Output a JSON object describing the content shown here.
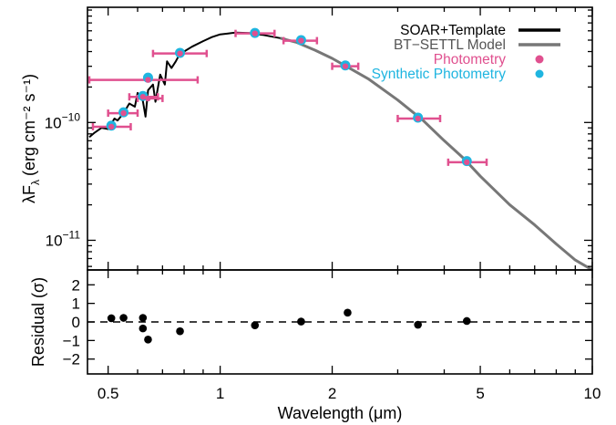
{
  "chart_data": [
    {
      "type": "line",
      "panel": "sed",
      "xscale": "log",
      "yscale": "log",
      "xlim": [
        0.44,
        10
      ],
      "ylim": [
        5.6e-12,
        9.5e-10
      ],
      "ylabel_main": "λF",
      "ylabel_sub": "λ",
      "ylabel_units": "(erg cm⁻² s⁻¹)",
      "y_ticks": [
        {
          "value": 1e-10,
          "base": "10",
          "exp": "−10"
        },
        {
          "value": 1e-11,
          "base": "10",
          "exp": "−11"
        }
      ],
      "legend": {
        "placement": "top-right",
        "entries": [
          {
            "label": "SOAR+Template",
            "color": "#000000",
            "marker": "line"
          },
          {
            "label": "BT−SETTL Model",
            "color": "#777777",
            "marker": "line"
          },
          {
            "label": "Photometry",
            "color": "#e0508f",
            "marker": "dot"
          },
          {
            "label": "Synthetic Photometry",
            "color": "#1fb5e0",
            "marker": "dot"
          }
        ]
      },
      "series": [
        {
          "name": "SOAR+Template",
          "color": "#000000",
          "x": [
            0.445,
            0.46,
            0.48,
            0.5,
            0.52,
            0.53,
            0.55,
            0.57,
            0.59,
            0.6,
            0.62,
            0.63,
            0.64,
            0.66,
            0.67,
            0.69,
            0.71,
            0.72,
            0.74,
            0.76,
            0.78,
            0.8,
            0.84,
            0.9,
            0.95,
            1.0,
            1.05,
            1.1,
            1.2,
            1.3,
            1.4,
            1.45,
            1.5
          ],
          "y": [
            7.5e-11,
            8.2e-11,
            9e-11,
            8.8e-11,
            1.08e-10,
            1.04e-10,
            1.2e-10,
            1.45e-10,
            1.36e-10,
            1.78e-10,
            1.52e-10,
            1.12e-10,
            1.88e-10,
            2.1e-10,
            1.5e-10,
            2.55e-10,
            2.1e-10,
            3.3e-10,
            2.9e-10,
            3.3e-10,
            3.85e-10,
            4e-10,
            4.4e-10,
            4.9e-10,
            5.3e-10,
            5.6e-10,
            5.7e-10,
            5.8e-10,
            5.75e-10,
            5.55e-10,
            5.3e-10,
            5.2e-10,
            5.1e-10
          ]
        },
        {
          "name": "BT−SETTL Model",
          "color": "#777777",
          "x": [
            1.45,
            1.6,
            1.8,
            2.0,
            2.2,
            2.5,
            3.0,
            3.5,
            4.0,
            4.5,
            5.0,
            6.0,
            7.0,
            8.0,
            9.0,
            10.0
          ],
          "y": [
            5.2e-10,
            4.8e-10,
            4.1e-10,
            3.5e-10,
            2.95e-10,
            2.35e-10,
            1.55e-10,
            1.05e-10,
            7e-11,
            5e-11,
            3.5e-11,
            2e-11,
            1.35e-11,
            9.3e-12,
            6.8e-12,
            5.6e-12
          ]
        }
      ],
      "photometry": [
        {
          "x": 0.51,
          "y": 9.2e-11,
          "xerr": [
            0.455,
            0.575
          ]
        },
        {
          "x": 0.55,
          "y": 1.2e-10,
          "xerr": [
            0.5,
            0.6
          ]
        },
        {
          "x": 0.62,
          "y": 1.65e-10,
          "xerr": [
            0.57,
            0.68
          ]
        },
        {
          "x": 0.64,
          "y": 2.3e-10,
          "xerr": [
            0.445,
            0.87
          ]
        },
        {
          "x": 0.64,
          "y": 1.6e-10,
          "xerr": [
            0.6,
            0.7
          ]
        },
        {
          "x": 0.78,
          "y": 3.85e-10,
          "xerr": [
            0.66,
            0.92
          ]
        },
        {
          "x": 1.24,
          "y": 5.7e-10,
          "xerr": [
            1.1,
            1.4
          ]
        },
        {
          "x": 1.65,
          "y": 4.95e-10,
          "xerr": [
            1.48,
            1.82
          ]
        },
        {
          "x": 2.17,
          "y": 3e-10,
          "xerr": [
            2.0,
            2.35
          ]
        },
        {
          "x": 3.4,
          "y": 1.08e-10,
          "xerr": [
            3.0,
            3.9
          ]
        },
        {
          "x": 4.6,
          "y": 4.6e-11,
          "xerr": [
            4.1,
            5.2
          ]
        }
      ],
      "synthetic_photometry": [
        {
          "x": 0.51,
          "y": 9.4e-11
        },
        {
          "x": 0.55,
          "y": 1.22e-10
        },
        {
          "x": 0.62,
          "y": 1.68e-10
        },
        {
          "x": 0.64,
          "y": 2.4e-10
        },
        {
          "x": 0.78,
          "y": 3.9e-10
        },
        {
          "x": 1.24,
          "y": 5.75e-10
        },
        {
          "x": 1.65,
          "y": 5e-10
        },
        {
          "x": 2.17,
          "y": 3.05e-10
        },
        {
          "x": 3.4,
          "y": 1.1e-10
        },
        {
          "x": 4.6,
          "y": 4.7e-11
        }
      ]
    },
    {
      "type": "scatter",
      "panel": "residual",
      "xscale": "log",
      "xlim": [
        0.44,
        10
      ],
      "ylim": [
        -2.8,
        2.8
      ],
      "ylabel": "Residual (σ)",
      "xlabel": "Wavelength (μm)",
      "y_ticks": [
        2,
        1,
        0,
        -1,
        -2
      ],
      "y_tick_labels": [
        "2",
        "1",
        "0",
        "−1",
        "−2"
      ],
      "x_ticks": [
        0.5,
        1,
        2,
        5,
        10
      ],
      "x_tick_labels": [
        "0.5",
        "1",
        "2",
        "5",
        "10"
      ],
      "zero_line": {
        "y": 0,
        "style": "dashed"
      },
      "points": [
        {
          "x": 0.51,
          "y": 0.2
        },
        {
          "x": 0.55,
          "y": 0.22
        },
        {
          "x": 0.62,
          "y": 0.22
        },
        {
          "x": 0.62,
          "y": -0.35
        },
        {
          "x": 0.64,
          "y": -0.95
        },
        {
          "x": 0.78,
          "y": -0.5
        },
        {
          "x": 1.24,
          "y": -0.18
        },
        {
          "x": 1.65,
          "y": 0.02
        },
        {
          "x": 2.2,
          "y": 0.5
        },
        {
          "x": 3.4,
          "y": -0.15
        },
        {
          "x": 4.6,
          "y": 0.05
        }
      ]
    }
  ]
}
